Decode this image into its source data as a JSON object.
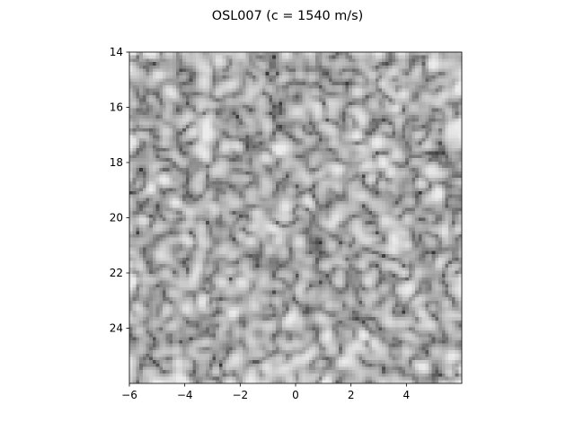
{
  "chart_data": {
    "type": "heatmap",
    "title": "OSL007 (c = 1540 m/s)",
    "xlabel": "",
    "ylabel": "",
    "xlim": [
      -6.0,
      6.0
    ],
    "ylim": [
      26.0,
      14.0
    ],
    "y_inverted": true,
    "colormap": "gray",
    "xticks": [
      -6,
      -4,
      -2,
      0,
      2,
      4
    ],
    "xtick_labels": [
      "−6",
      "−4",
      "−2",
      "0",
      "2",
      "4"
    ],
    "yticks": [
      14,
      16,
      18,
      20,
      22,
      24
    ],
    "ytick_labels": [
      "14",
      "16",
      "18",
      "20",
      "22",
      "24"
    ],
    "grid": false,
    "legend": "none",
    "grid_resolution": [
      100,
      100
    ],
    "appearance": "B-mode ultrasound speckle pattern; mostly light gray with dark curved streaks"
  }
}
